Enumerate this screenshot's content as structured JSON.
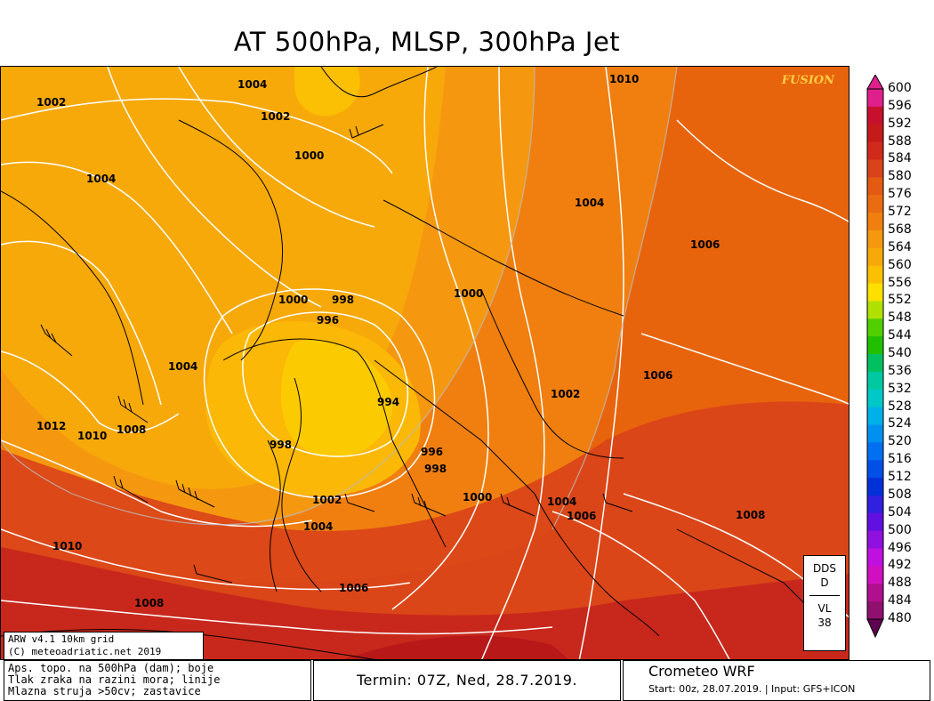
{
  "title": "AT 500hPa, MLSP, 300hPa Jet",
  "watermark": "FUSION",
  "colors": {
    "deep_orange": "#e8640c",
    "mid_orange": "#f07f10",
    "light_orange": "#f7a30a",
    "yellow_orange": "#fbbf04",
    "yellow": "#fde000",
    "red": "#d9341c",
    "dark_red": "#c01818"
  },
  "isobar_labels": [
    {
      "id": "l1",
      "text": "1002"
    },
    {
      "id": "l2",
      "text": "1004"
    },
    {
      "id": "l3",
      "text": "1002"
    },
    {
      "id": "l4",
      "text": "1000"
    },
    {
      "id": "l5",
      "text": "1004"
    },
    {
      "id": "l6",
      "text": "1010"
    },
    {
      "id": "l7",
      "text": "1004"
    },
    {
      "id": "l8",
      "text": "1006"
    },
    {
      "id": "l9",
      "text": "1000"
    },
    {
      "id": "l10",
      "text": "998"
    },
    {
      "id": "l11",
      "text": "996"
    },
    {
      "id": "l12",
      "text": "1000"
    },
    {
      "id": "l13",
      "text": "1004"
    },
    {
      "id": "l14",
      "text": "994"
    },
    {
      "id": "l15",
      "text": "1006"
    },
    {
      "id": "l16",
      "text": "1002"
    },
    {
      "id": "l17",
      "text": "1012"
    },
    {
      "id": "l18",
      "text": "1010"
    },
    {
      "id": "l19",
      "text": "1008"
    },
    {
      "id": "l20",
      "text": "998"
    },
    {
      "id": "l21",
      "text": "996"
    },
    {
      "id": "l22",
      "text": "998"
    },
    {
      "id": "l23",
      "text": "1002"
    },
    {
      "id": "l24",
      "text": "1004"
    },
    {
      "id": "l25",
      "text": "1000"
    },
    {
      "id": "l26",
      "text": "1004"
    },
    {
      "id": "l27",
      "text": "1006"
    },
    {
      "id": "l28",
      "text": "1008"
    },
    {
      "id": "l29",
      "text": "1010"
    },
    {
      "id": "l30",
      "text": "1006"
    },
    {
      "id": "l31",
      "text": "1008"
    }
  ],
  "legend": {
    "values": [
      "600",
      "596",
      "592",
      "588",
      "584",
      "580",
      "576",
      "572",
      "568",
      "564",
      "560",
      "556",
      "552",
      "548",
      "544",
      "540",
      "536",
      "532",
      "528",
      "524",
      "520",
      "516",
      "512",
      "508",
      "504",
      "500",
      "496",
      "492",
      "488",
      "484",
      "480"
    ],
    "colors": [
      "#e0208a",
      "#c8102e",
      "#c41a1a",
      "#d02a1c",
      "#d9431a",
      "#e35a12",
      "#ea6c10",
      "#f07f10",
      "#f59810",
      "#f7a90a",
      "#fbbf04",
      "#fde000",
      "#b0e000",
      "#50d000",
      "#20c000",
      "#00c060",
      "#00c8a0",
      "#00c8c8",
      "#00b0e8",
      "#0090f0",
      "#0070f0",
      "#0050e8",
      "#0030d8",
      "#3020e0",
      "#6010e0",
      "#9010e0",
      "#c010e0",
      "#d010c0",
      "#b01090",
      "#901070",
      "#600050"
    ]
  },
  "dds_box": {
    "line1": "DDS",
    "line2": "D",
    "line3": "VL",
    "line4": "38"
  },
  "model_box": {
    "line1": "ARW v4.1 10km grid",
    "line2": "(C) meteoadriatic.net 2019"
  },
  "footer": {
    "left_line1": "Aps. topo. na 500hPa (dam); boje",
    "left_line2": "Tlak zraka na razini mora; linije",
    "left_line3": "Mlazna struja >50cv; zastavice",
    "term": "Termin: 07Z, Ned, 28.7.2019.",
    "model_name": "Crometeo WRF",
    "model_start": "Start: 00z, 28.07.2019. | Input: GFS+ICON"
  }
}
